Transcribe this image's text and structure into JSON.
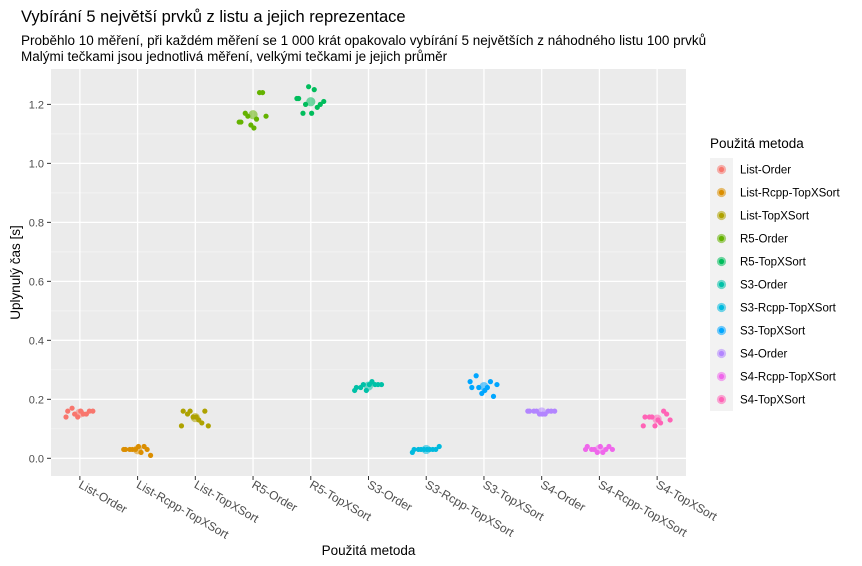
{
  "chart_data": {
    "type": "scatter",
    "title": "Vybírání 5 největší prvků z listu a jejich reprezentace",
    "subtitle_lines": [
      "Proběhlo 10 měření, při každém měření se 1 000 krát opakovalo vybírání 5 největších z náhodného listu 100 prvků",
      "Malými tečkami jsou jednotlivá měření, velkými tečkami je jejich průměr"
    ],
    "xlabel": "Použitá metoda",
    "ylabel": "Uplynulý čas [s]",
    "legend_title": "Použitá metoda",
    "legend_position": "right",
    "grid": true,
    "ylim": [
      -0.06,
      1.32
    ],
    "yticks": [
      0.0,
      0.2,
      0.4,
      0.6,
      0.8,
      1.0,
      1.2
    ],
    "ytick_labels": [
      "0.0",
      "0.2",
      "0.4",
      "0.6",
      "0.8",
      "1.0",
      "1.2"
    ],
    "categories": [
      "List-Order",
      "List-Rcpp-TopXSort",
      "List-TopXSort",
      "R5-Order",
      "R5-TopXSort",
      "S3-Order",
      "S3-Rcpp-TopXSort",
      "S3-TopXSort",
      "S4-Order",
      "S4-Rcpp-TopXSort",
      "S4-TopXSort"
    ],
    "series": [
      {
        "name": "List-Order",
        "color": "#F8766D",
        "values": [
          0.16,
          0.15,
          0.14,
          0.16,
          0.17,
          0.15,
          0.16,
          0.14,
          0.16,
          0.15
        ],
        "mean": 0.153
      },
      {
        "name": "List-Rcpp-TopXSort",
        "color": "#DB8E00",
        "values": [
          0.03,
          0.04,
          0.03,
          0.01,
          0.03,
          0.02,
          0.03,
          0.03,
          0.04,
          0.03
        ],
        "mean": 0.029
      },
      {
        "name": "List-TopXSort",
        "color": "#AEA200",
        "values": [
          0.16,
          0.12,
          0.14,
          0.11,
          0.15,
          0.13,
          0.16,
          0.11,
          0.14,
          0.16
        ],
        "mean": 0.138
      },
      {
        "name": "R5-Order",
        "color": "#64B200",
        "values": [
          1.14,
          1.24,
          1.13,
          1.16,
          1.17,
          1.15,
          1.24,
          1.14,
          1.12,
          1.16
        ],
        "mean": 1.165
      },
      {
        "name": "R5-TopXSort",
        "color": "#00BD5C",
        "values": [
          1.22,
          1.19,
          1.26,
          1.21,
          1.17,
          1.25,
          1.2,
          1.22,
          1.17,
          1.2
        ],
        "mean": 1.209
      },
      {
        "name": "S3-Order",
        "color": "#00C1A7",
        "values": [
          0.24,
          0.25,
          0.23,
          0.25,
          0.24,
          0.26,
          0.25,
          0.23,
          0.25,
          0.25
        ],
        "mean": 0.245
      },
      {
        "name": "S3-Rcpp-TopXSort",
        "color": "#00BADE",
        "values": [
          0.03,
          0.03,
          0.03,
          0.04,
          0.03,
          0.03,
          0.03,
          0.02,
          0.03,
          0.03
        ],
        "mean": 0.03
      },
      {
        "name": "S3-TopXSort",
        "color": "#00A6FF",
        "values": [
          0.24,
          0.26,
          0.22,
          0.25,
          0.28,
          0.24,
          0.21,
          0.26,
          0.23,
          0.24
        ],
        "mean": 0.243
      },
      {
        "name": "S4-Order",
        "color": "#B385FF",
        "values": [
          0.16,
          0.16,
          0.15,
          0.16,
          0.16,
          0.15,
          0.16,
          0.16,
          0.15,
          0.16
        ],
        "mean": 0.157
      },
      {
        "name": "S4-Rcpp-TopXSort",
        "color": "#EF67EB",
        "values": [
          0.04,
          0.03,
          0.02,
          0.03,
          0.03,
          0.02,
          0.04,
          0.03,
          0.04,
          0.03
        ],
        "mean": 0.031
      },
      {
        "name": "S4-TopXSort",
        "color": "#FF63B6",
        "values": [
          0.14,
          0.16,
          0.11,
          0.13,
          0.14,
          0.12,
          0.15,
          0.11,
          0.13,
          0.14
        ],
        "mean": 0.133
      }
    ]
  }
}
